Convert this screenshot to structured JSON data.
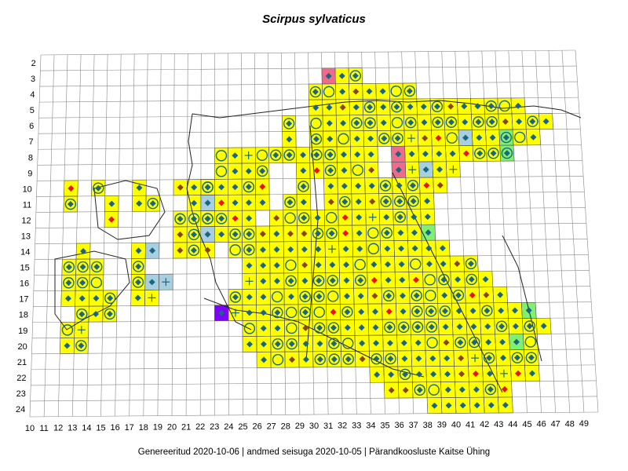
{
  "map": {
    "title": "Scirpus sylvaticus",
    "footer": "Genereeritud 2020-10-06  |  andmed seisuga 2020-10-05  |  Pärandkoosluste Kaitse Ühing",
    "row_labels": [
      "2",
      "3",
      "4",
      "5",
      "6",
      "7",
      "8",
      "9",
      "10",
      "11",
      "12",
      "13",
      "14",
      "15",
      "16",
      "17",
      "18",
      "19",
      "20",
      "21",
      "22",
      "23",
      "24"
    ],
    "col_labels": [
      "10",
      "11",
      "12",
      "13",
      "14",
      "15",
      "16",
      "17",
      "18",
      "19",
      "20",
      "21",
      "22",
      "23",
      "24",
      "25",
      "26",
      "27",
      "28",
      "29",
      "30",
      "31",
      "32",
      "33",
      "34",
      "35",
      "36",
      "37",
      "38",
      "39",
      "40",
      "41",
      "42",
      "43",
      "44",
      "45",
      "46",
      "47",
      "48",
      "49"
    ],
    "colors": {
      "yellow": "#ffff00",
      "teal": "#1a6680",
      "red": "#ee1111",
      "brown": "#8b4513",
      "lightblue": "#a8cfe0",
      "pink": "#ee6b8b",
      "green": "#80f070",
      "purple": "#8000ff"
    }
  }
}
